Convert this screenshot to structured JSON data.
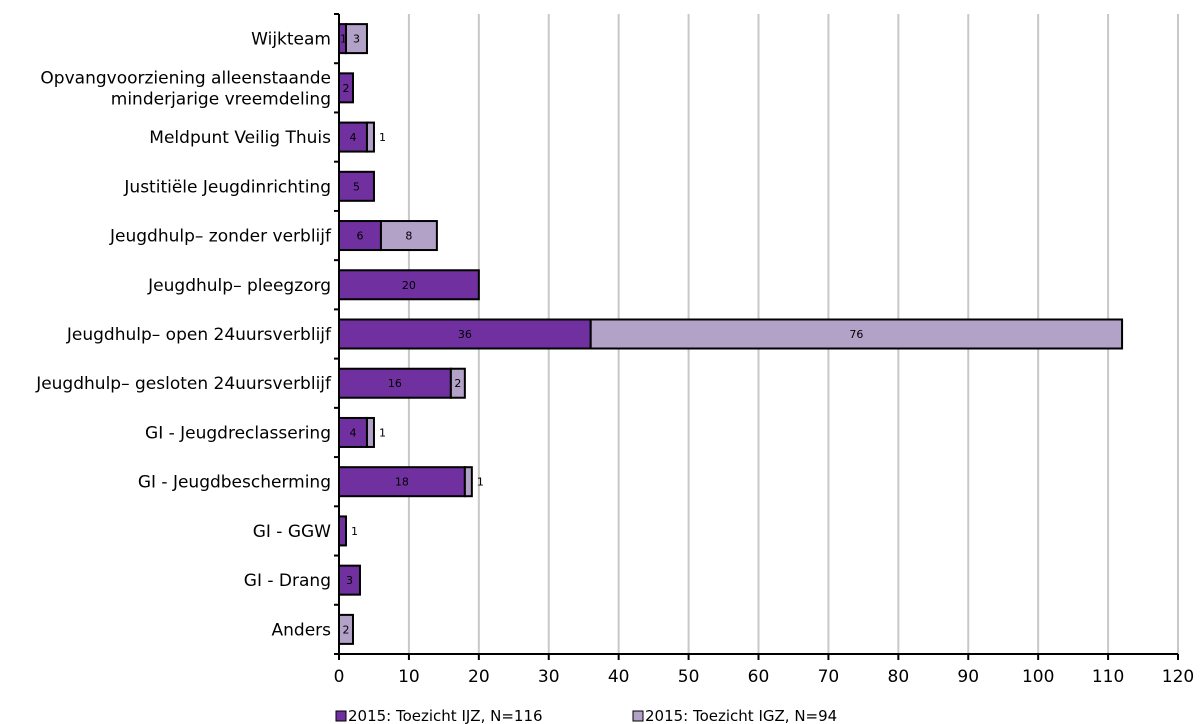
{
  "chart_data": {
    "type": "bar",
    "orientation": "horizontal",
    "stacked": true,
    "categories": [
      [
        "Wijkteam"
      ],
      [
        "Opvangvoorziening alleenstaande",
        "minderjarige vreemdeling"
      ],
      [
        "Meldpunt Veilig Thuis"
      ],
      [
        "Justitiële Jeugdinrichting"
      ],
      [
        "Jeugdhulp– zonder verblijf"
      ],
      [
        "Jeugdhulp– pleegzorg"
      ],
      [
        "Jeugdhulp– open 24uursverblijf"
      ],
      [
        "Jeugdhulp– gesloten 24uursverblijf"
      ],
      [
        "GI - Jeugdreclassering"
      ],
      [
        "GI - Jeugdbescherming"
      ],
      [
        "GI - GGW"
      ],
      [
        "GI - Drang"
      ],
      [
        "Anders"
      ]
    ],
    "series": [
      {
        "name": "2015: Toezicht IJZ, N=116",
        "color": "#7030a0",
        "values": [
          1,
          2,
          4,
          5,
          6,
          20,
          36,
          16,
          4,
          18,
          1,
          3,
          0
        ]
      },
      {
        "name": "2015: Toezicht IGZ, N=94",
        "color": "#b3a2c7",
        "values": [
          3,
          0,
          1,
          0,
          8,
          0,
          76,
          2,
          1,
          1,
          0,
          0,
          2
        ]
      }
    ],
    "xlim": [
      0,
      120
    ],
    "xticks": [
      0,
      10,
      20,
      30,
      40,
      50,
      60,
      70,
      80,
      90,
      100,
      110,
      120
    ],
    "grid": "vertical",
    "legend_position": "bottom"
  }
}
